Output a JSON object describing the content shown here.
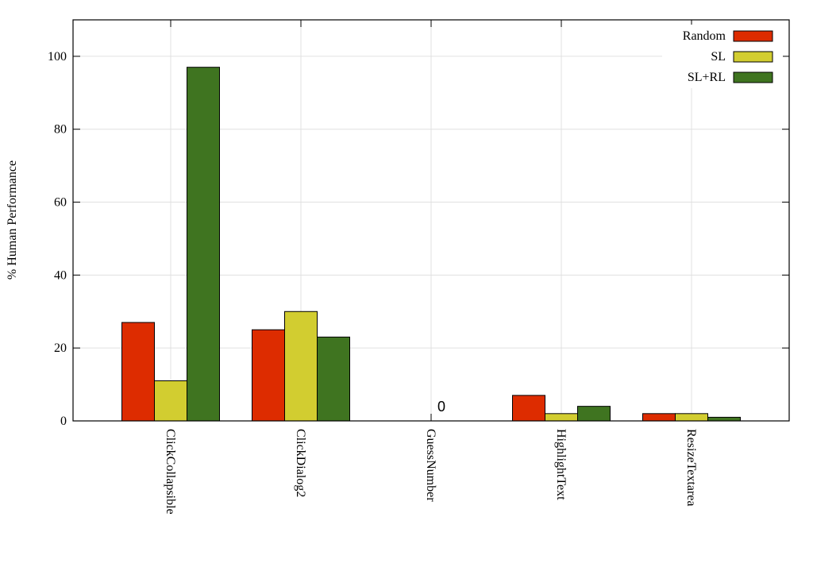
{
  "chart_data": {
    "type": "bar",
    "y_label": "% Human Performance",
    "categories": [
      "ClickCollapsible",
      "ClickDialog2",
      "GuessNumber",
      "HighlightText",
      "ResizeTextarea"
    ],
    "series": [
      {
        "name": "Random",
        "color": "#dd2c00",
        "values": [
          27,
          25,
          0,
          7,
          2
        ]
      },
      {
        "name": "SL",
        "color": "#d2cd30",
        "values": [
          11,
          30,
          0,
          2,
          2
        ]
      },
      {
        "name": "SL+RL",
        "color": "#3f7420",
        "values": [
          97,
          23,
          0,
          4,
          1
        ]
      }
    ],
    "annotation": "0",
    "ylim": [
      0,
      110
    ],
    "yticks": [
      0,
      20,
      40,
      60,
      80,
      100
    ],
    "grid": true,
    "legend": "top-right"
  }
}
